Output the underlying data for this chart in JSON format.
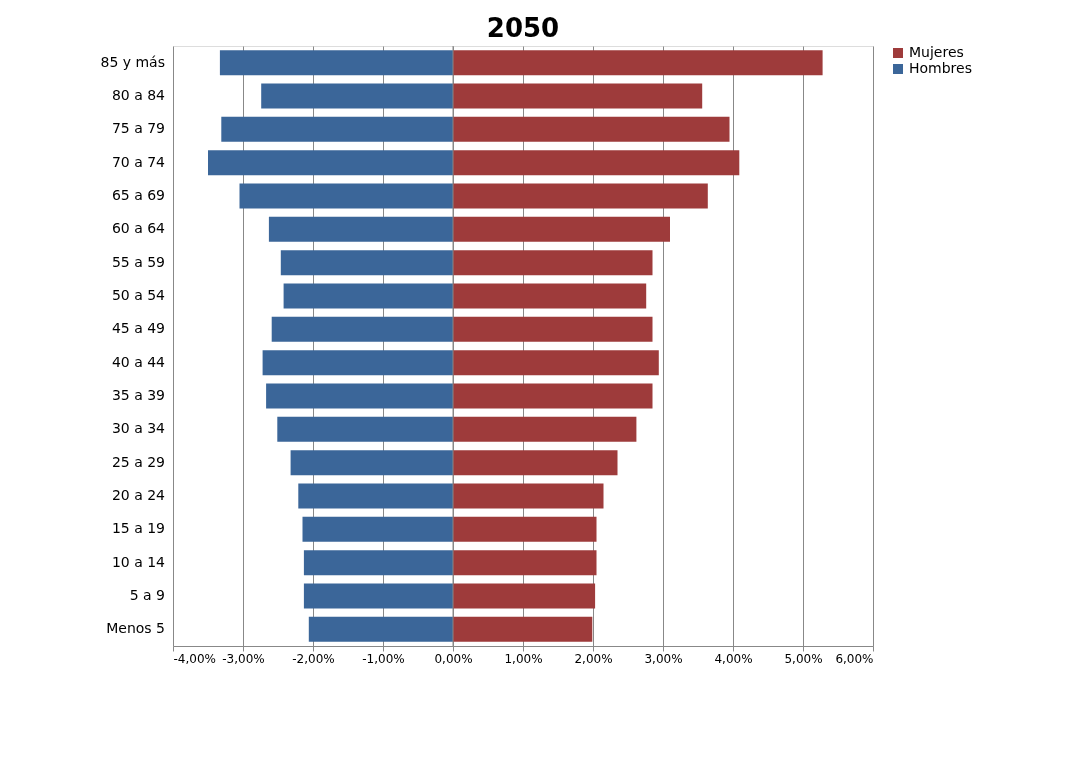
{
  "chart_data": {
    "type": "bar",
    "orientation": "horizontal",
    "title": "2050",
    "categories": [
      "85 y más",
      "80 a 84",
      "75 a 79",
      "70 a 74",
      "65 a 69",
      "60 a 64",
      "55 a 59",
      "50 a 54",
      "45 a 49",
      "40 a 44",
      "35 a 39",
      "30 a 34",
      "25 a 29",
      "20 a 24",
      "15 a 19",
      "10 a 14",
      "5 a 9",
      "Menos 5"
    ],
    "series": [
      {
        "name": "Mujeres",
        "color": "#9e3b3b",
        "values": [
          5.28,
          3.56,
          3.95,
          4.09,
          3.64,
          3.1,
          2.85,
          2.76,
          2.85,
          2.94,
          2.85,
          2.62,
          2.35,
          2.15,
          2.05,
          2.05,
          2.03,
          1.99
        ]
      },
      {
        "name": "Hombres",
        "color": "#3b6699",
        "values": [
          -3.33,
          -2.74,
          -3.31,
          -3.5,
          -3.05,
          -2.63,
          -2.46,
          -2.42,
          -2.59,
          -2.72,
          -2.67,
          -2.51,
          -2.32,
          -2.21,
          -2.15,
          -2.13,
          -2.13,
          -2.06
        ]
      }
    ],
    "xlim": [
      -4,
      6
    ],
    "xticks": [
      {
        "value": -4,
        "label": "-4,00%"
      },
      {
        "value": -3,
        "label": "-3,00%"
      },
      {
        "value": -2,
        "label": "-2,00%"
      },
      {
        "value": -1,
        "label": "-1,00%"
      },
      {
        "value": 0,
        "label": "0,00%"
      },
      {
        "value": 1,
        "label": "1,00%"
      },
      {
        "value": 2,
        "label": "2,00%"
      },
      {
        "value": 3,
        "label": "3,00%"
      },
      {
        "value": 4,
        "label": "4,00%"
      },
      {
        "value": 5,
        "label": "5,00%"
      },
      {
        "value": 6,
        "label": "6,00%"
      }
    ],
    "grid": "x",
    "legend": "right",
    "stacked": true
  }
}
